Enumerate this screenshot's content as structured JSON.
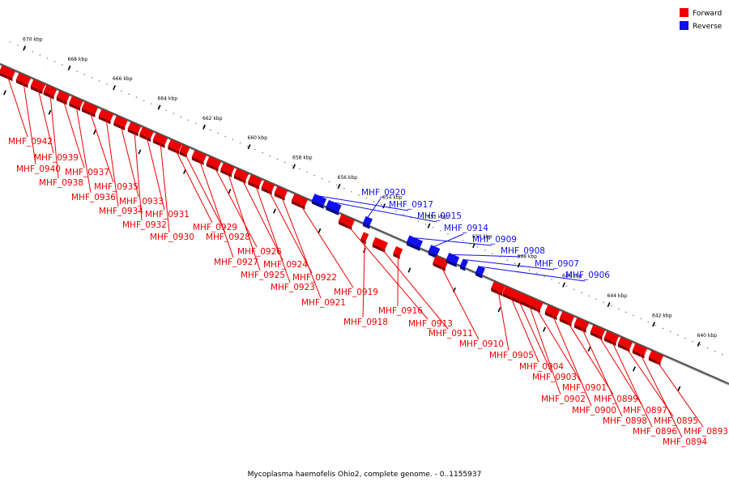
{
  "caption": "Mycoplasma haemofelis Ohio2, complete genome. - 0..1155937",
  "legend": [
    {
      "label": "Forward",
      "color": "#ee0000"
    },
    {
      "label": "Reverse",
      "color": "#1010ee"
    }
  ],
  "ticks": [
    "670 kbp",
    "668 kbp",
    "666 kbp",
    "664 kbp",
    "662 kbp",
    "660 kbp",
    "658 kbp",
    "656 kbp",
    "654 kbp",
    "652 kbp",
    "650 kbp",
    "648 kbp",
    "646 kbp",
    "644 kbp",
    "642 kbp",
    "640 kbp"
  ],
  "genes": [
    {
      "label": "MHF_0942",
      "strand": "forward"
    },
    {
      "label": "MHF_0940",
      "strand": "forward"
    },
    {
      "label": "MHF_0939",
      "strand": "forward"
    },
    {
      "label": "MHF_0938",
      "strand": "forward"
    },
    {
      "label": "MHF_0937",
      "strand": "forward"
    },
    {
      "label": "MHF_0936",
      "strand": "forward"
    },
    {
      "label": "MHF_0935",
      "strand": "forward"
    },
    {
      "label": "MHF_0934",
      "strand": "forward"
    },
    {
      "label": "MHF_0933",
      "strand": "forward"
    },
    {
      "label": "MHF_0932",
      "strand": "forward"
    },
    {
      "label": "MHF_0931",
      "strand": "forward"
    },
    {
      "label": "MHF_0930",
      "strand": "forward"
    },
    {
      "label": "MHF_0929",
      "strand": "forward"
    },
    {
      "label": "MHF_0928",
      "strand": "forward"
    },
    {
      "label": "MHF_0927",
      "strand": "forward"
    },
    {
      "label": "MHF_0926",
      "strand": "forward"
    },
    {
      "label": "MHF_0925",
      "strand": "forward"
    },
    {
      "label": "MHF_0924",
      "strand": "forward"
    },
    {
      "label": "MHF_0923",
      "strand": "forward"
    },
    {
      "label": "MHF_0922",
      "strand": "forward"
    },
    {
      "label": "MHF_0921",
      "strand": "forward"
    },
    {
      "label": "MHF_0920",
      "strand": "reverse"
    },
    {
      "label": "MHF_0919",
      "strand": "forward"
    },
    {
      "label": "MHF_0918",
      "strand": "forward"
    },
    {
      "label": "MHF_0917",
      "strand": "reverse"
    },
    {
      "label": "MHF_0916",
      "strand": "forward"
    },
    {
      "label": "MHF_0915",
      "strand": "reverse"
    },
    {
      "label": "MHF_0914",
      "strand": "reverse"
    },
    {
      "label": "MHF_0913",
      "strand": "forward"
    },
    {
      "label": "MHF_0911",
      "strand": "forward"
    },
    {
      "label": "MHF_0910",
      "strand": "forward"
    },
    {
      "label": "MHF_0909",
      "strand": "reverse"
    },
    {
      "label": "MHF_0908",
      "strand": "reverse"
    },
    {
      "label": "MHF_0907",
      "strand": "reverse"
    },
    {
      "label": "MHF_0906",
      "strand": "reverse"
    },
    {
      "label": "MHF_0905",
      "strand": "forward"
    },
    {
      "label": "MHF_0904",
      "strand": "forward"
    },
    {
      "label": "MHF_0903",
      "strand": "forward"
    },
    {
      "label": "MHF_0902",
      "strand": "forward"
    },
    {
      "label": "MHF_0901",
      "strand": "forward"
    },
    {
      "label": "MHF_0900",
      "strand": "forward"
    },
    {
      "label": "MHF_0899",
      "strand": "forward"
    },
    {
      "label": "MHF_0898",
      "strand": "forward"
    },
    {
      "label": "MHF_0897",
      "strand": "forward"
    },
    {
      "label": "MHF_0896",
      "strand": "forward"
    },
    {
      "label": "MHF_0895",
      "strand": "forward"
    },
    {
      "label": "MHF_0894",
      "strand": "forward"
    },
    {
      "label": "MHF_0893",
      "strand": "forward"
    }
  ]
}
